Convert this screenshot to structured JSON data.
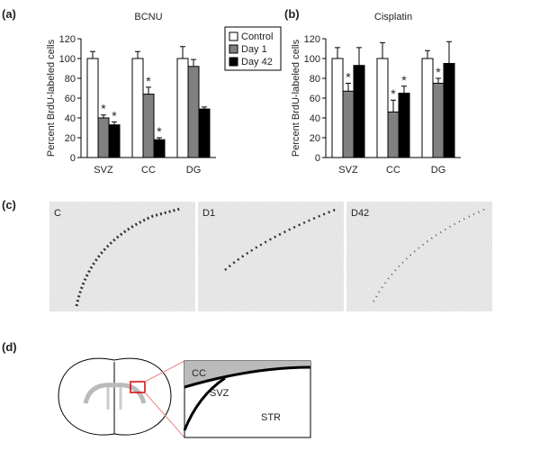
{
  "chart_data": [
    {
      "type": "bar",
      "title": "BCNU",
      "y_label": "Percent BrdU-labeled cells",
      "categories": [
        "SVZ",
        "CC",
        "DG"
      ],
      "series": [
        {
          "name": "Control",
          "color": "#ffffff",
          "values": [
            100,
            100,
            100
          ],
          "errors": [
            7,
            7,
            12
          ]
        },
        {
          "name": "Day 1",
          "color": "#808080",
          "values": [
            40,
            64,
            92
          ],
          "errors": [
            3,
            7,
            7
          ],
          "significance": [
            "*",
            "*",
            null
          ]
        },
        {
          "name": "Day 42",
          "color": "#000000",
          "values": [
            33,
            18,
            49
          ],
          "errors": [
            3,
            2,
            2
          ],
          "significance": [
            "*",
            "*",
            null
          ]
        }
      ],
      "ylim": [
        0,
        120
      ],
      "yticks": [
        0,
        20,
        40,
        60,
        80,
        100,
        120
      ],
      "legend": true
    },
    {
      "type": "bar",
      "title": "Cisplatin",
      "y_label": "Percent BrdU-labeled cells",
      "categories": [
        "SVZ",
        "CC",
        "DG"
      ],
      "series": [
        {
          "color": "#ffffff",
          "values": [
            100,
            100,
            100
          ],
          "errors": [
            11,
            16,
            8
          ]
        },
        {
          "color": "#808080",
          "values": [
            67,
            46,
            75
          ],
          "errors": [
            8,
            12,
            5
          ],
          "significance": [
            "*",
            "*",
            "*"
          ]
        },
        {
          "color": "#000000",
          "values": [
            93,
            65,
            95
          ],
          "errors": [
            18,
            7,
            22
          ],
          "significance": [
            null,
            "*",
            null
          ]
        }
      ],
      "ylim": [
        0,
        120
      ],
      "yticks": [
        0,
        20,
        40,
        60,
        80,
        100,
        120
      ],
      "legend": false
    }
  ],
  "panel_labels": [
    "(a)",
    "(b)",
    "(c)",
    "(d)"
  ],
  "micrographs": [
    "C",
    "D1",
    "D42"
  ],
  "diagram": {
    "labels": [
      "CC",
      "SVZ",
      "STR"
    ]
  }
}
